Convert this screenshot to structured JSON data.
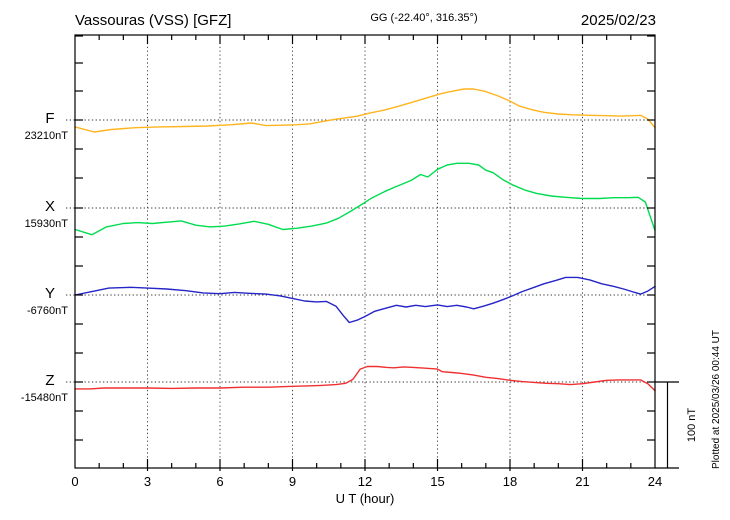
{
  "header": {
    "station_title": "Vassouras (VSS)  [GFZ]",
    "coordinates": "GG (-22.40°, 316.35°)",
    "date": "2025/02/23"
  },
  "footer": {
    "xaxis_label": "U T (hour)",
    "scale_bar_label": "100 nT",
    "plotted_at": "Plotted at 2025/03/26 00:44 UT"
  },
  "channels": [
    {
      "id": "F",
      "label": "F",
      "baseline_value": "23210nT",
      "color": "#FFB41E"
    },
    {
      "id": "X",
      "label": "X",
      "baseline_value": "15930nT",
      "color": "#00DC50"
    },
    {
      "id": "Y",
      "label": "Y",
      "baseline_value": "-6760nT",
      "color": "#2525C8"
    },
    {
      "id": "Z",
      "label": "Z",
      "baseline_value": "-15480nT",
      "color": "#F03030"
    }
  ],
  "chart_data": {
    "type": "line",
    "title": "Vassouras (VSS) [GFZ] magnetogram for 2025/02/23",
    "xlabel": "U T (hour)",
    "x_range": [
      0,
      24
    ],
    "x_ticks": [
      0,
      3,
      6,
      9,
      12,
      15,
      18,
      21,
      24
    ],
    "grid": "dotted vertical lines every 3 hours, dotted horizontal baseline per channel",
    "legend_position": "left margin, one colored label per stacked trace",
    "scale_nT_per_division": 100,
    "y_unit": "nT",
    "series": [
      {
        "name": "F",
        "baseline_nT": 23210,
        "color": "#FFB41E",
        "points": [
          [
            0,
            -8
          ],
          [
            0.8,
            -14
          ],
          [
            1.5,
            -11
          ],
          [
            2.5,
            -9
          ],
          [
            3.5,
            -8
          ],
          [
            4.5,
            -7.5
          ],
          [
            5.5,
            -7
          ],
          [
            6.5,
            -5.5
          ],
          [
            7.3,
            -3.5
          ],
          [
            7.9,
            -6.5
          ],
          [
            8.6,
            -6
          ],
          [
            9.2,
            -5.5
          ],
          [
            9.7,
            -4.5
          ],
          [
            10.2,
            -2
          ],
          [
            10.7,
            0.5
          ],
          [
            11.2,
            2.5
          ],
          [
            11.7,
            4.5
          ],
          [
            12.2,
            8
          ],
          [
            12.8,
            11.5
          ],
          [
            13.4,
            16
          ],
          [
            14,
            21
          ],
          [
            14.6,
            26
          ],
          [
            15.2,
            31
          ],
          [
            15.7,
            34
          ],
          [
            16.1,
            36
          ],
          [
            16.5,
            36
          ],
          [
            17,
            33
          ],
          [
            17.5,
            28
          ],
          [
            18,
            22
          ],
          [
            18.4,
            16
          ],
          [
            18.9,
            12
          ],
          [
            19.4,
            9
          ],
          [
            20,
            7
          ],
          [
            20.6,
            6
          ],
          [
            21.3,
            5.5
          ],
          [
            22,
            5
          ],
          [
            22.6,
            4.5
          ],
          [
            23.1,
            5
          ],
          [
            23.4,
            5.5
          ],
          [
            23.7,
            1
          ],
          [
            24,
            -9
          ]
        ]
      },
      {
        "name": "X",
        "baseline_nT": 15930,
        "color": "#00DC50",
        "points": [
          [
            0,
            -25
          ],
          [
            0.7,
            -31
          ],
          [
            1.3,
            -22
          ],
          [
            2,
            -18
          ],
          [
            2.6,
            -17
          ],
          [
            3.2,
            -18
          ],
          [
            3.8,
            -16.5
          ],
          [
            4.4,
            -15
          ],
          [
            5,
            -20
          ],
          [
            5.6,
            -22
          ],
          [
            6.2,
            -21
          ],
          [
            6.8,
            -18.5
          ],
          [
            7.4,
            -15.5
          ],
          [
            8,
            -19
          ],
          [
            8.6,
            -25
          ],
          [
            9.2,
            -23.5
          ],
          [
            9.8,
            -21
          ],
          [
            10.4,
            -17.5
          ],
          [
            10.9,
            -12
          ],
          [
            11.4,
            -4
          ],
          [
            11.8,
            3
          ],
          [
            12.3,
            12
          ],
          [
            12.8,
            19
          ],
          [
            13.3,
            25
          ],
          [
            13.9,
            32
          ],
          [
            14.3,
            39
          ],
          [
            14.6,
            36
          ],
          [
            15,
            45
          ],
          [
            15.4,
            50
          ],
          [
            15.8,
            52
          ],
          [
            16.3,
            52
          ],
          [
            16.7,
            50
          ],
          [
            17,
            44
          ],
          [
            17.3,
            41
          ],
          [
            17.7,
            33
          ],
          [
            18.1,
            27
          ],
          [
            18.6,
            21
          ],
          [
            19.1,
            17
          ],
          [
            19.7,
            14
          ],
          [
            20.3,
            12.5
          ],
          [
            21,
            11
          ],
          [
            21.7,
            11
          ],
          [
            22.3,
            12
          ],
          [
            22.9,
            12
          ],
          [
            23.3,
            12.5
          ],
          [
            23.6,
            7
          ],
          [
            24,
            -26
          ]
        ]
      },
      {
        "name": "Y",
        "baseline_nT": -6760,
        "color": "#2525C8",
        "points": [
          [
            0,
            0
          ],
          [
            0.7,
            4
          ],
          [
            1.4,
            8
          ],
          [
            2.3,
            9
          ],
          [
            3,
            8
          ],
          [
            3.8,
            7
          ],
          [
            4.6,
            5
          ],
          [
            5.3,
            2.5
          ],
          [
            6,
            1.5
          ],
          [
            6.6,
            3
          ],
          [
            7.2,
            2
          ],
          [
            7.9,
            1
          ],
          [
            8.5,
            -1
          ],
          [
            9,
            -4
          ],
          [
            9.5,
            -7
          ],
          [
            10,
            -8
          ],
          [
            10.4,
            -7.5
          ],
          [
            10.8,
            -13
          ],
          [
            11.1,
            -24
          ],
          [
            11.35,
            -32
          ],
          [
            11.7,
            -29
          ],
          [
            12,
            -25
          ],
          [
            12.4,
            -19
          ],
          [
            12.9,
            -15
          ],
          [
            13.3,
            -12
          ],
          [
            13.7,
            -14
          ],
          [
            14.1,
            -12
          ],
          [
            14.5,
            -13.5
          ],
          [
            15,
            -11.5
          ],
          [
            15.4,
            -13.5
          ],
          [
            15.8,
            -12
          ],
          [
            16.2,
            -14
          ],
          [
            16.5,
            -16
          ],
          [
            16.9,
            -13
          ],
          [
            17.3,
            -9.5
          ],
          [
            17.7,
            -5.5
          ],
          [
            18.1,
            -1
          ],
          [
            18.5,
            4
          ],
          [
            19,
            9
          ],
          [
            19.4,
            13
          ],
          [
            19.9,
            17
          ],
          [
            20.3,
            20.5
          ],
          [
            20.8,
            20.5
          ],
          [
            21.3,
            17.5
          ],
          [
            21.8,
            13
          ],
          [
            22.3,
            10
          ],
          [
            22.7,
            7
          ],
          [
            23.1,
            3.5
          ],
          [
            23.4,
            1
          ],
          [
            23.7,
            4.5
          ],
          [
            24,
            10
          ]
        ]
      },
      {
        "name": "Z",
        "baseline_nT": -15480,
        "color": "#F03030",
        "points": [
          [
            0,
            -8
          ],
          [
            0.6,
            -8
          ],
          [
            1.2,
            -7
          ],
          [
            2,
            -7
          ],
          [
            3,
            -7
          ],
          [
            4,
            -7.5
          ],
          [
            5,
            -7
          ],
          [
            6,
            -7
          ],
          [
            7,
            -6
          ],
          [
            8,
            -6
          ],
          [
            9,
            -5
          ],
          [
            9.6,
            -4.5
          ],
          [
            10.2,
            -4
          ],
          [
            10.8,
            -3
          ],
          [
            11.2,
            -1.5
          ],
          [
            11.5,
            3
          ],
          [
            11.8,
            15
          ],
          [
            12.1,
            18
          ],
          [
            12.5,
            18
          ],
          [
            12.9,
            17
          ],
          [
            13.2,
            16.5
          ],
          [
            13.6,
            17.5
          ],
          [
            14,
            17
          ],
          [
            14.5,
            16
          ],
          [
            15,
            15
          ],
          [
            15.2,
            12
          ],
          [
            15.6,
            11
          ],
          [
            16,
            10
          ],
          [
            16.5,
            8
          ],
          [
            17,
            5.5
          ],
          [
            17.5,
            4
          ],
          [
            18,
            2
          ],
          [
            18.5,
            0.5
          ],
          [
            19,
            -0.5
          ],
          [
            19.5,
            -1.5
          ],
          [
            20,
            -2
          ],
          [
            20.5,
            -3
          ],
          [
            21,
            -2
          ],
          [
            21.5,
            0
          ],
          [
            22,
            2
          ],
          [
            22.5,
            2.5
          ],
          [
            23,
            2.5
          ],
          [
            23.4,
            2.5
          ],
          [
            23.7,
            -2
          ],
          [
            24,
            -10
          ]
        ]
      }
    ]
  }
}
